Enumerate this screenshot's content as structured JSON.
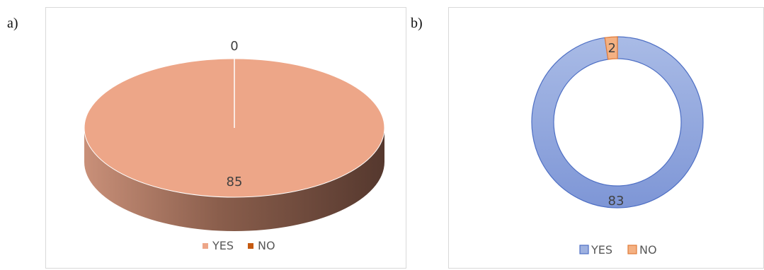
{
  "panels": {
    "a_label": "a)",
    "b_label": "b)"
  },
  "chart_data": [
    {
      "type": "pie",
      "style": "3d",
      "title": "",
      "categories": [
        "YES",
        "NO"
      ],
      "values": [
        85,
        0
      ],
      "data_labels": [
        "85",
        "0"
      ],
      "colors": [
        "#eda688",
        "#c55a11"
      ],
      "legend": {
        "position": "bottom",
        "entries": [
          "YES",
          "NO"
        ]
      }
    },
    {
      "type": "pie",
      "style": "doughnut",
      "title": "",
      "categories": [
        "YES",
        "NO"
      ],
      "values": [
        83,
        2
      ],
      "data_labels": [
        "83",
        "2"
      ],
      "colors": [
        "#9eb1e0",
        "#f4b183"
      ],
      "legend": {
        "position": "bottom",
        "entries": [
          "YES",
          "NO"
        ]
      }
    }
  ]
}
